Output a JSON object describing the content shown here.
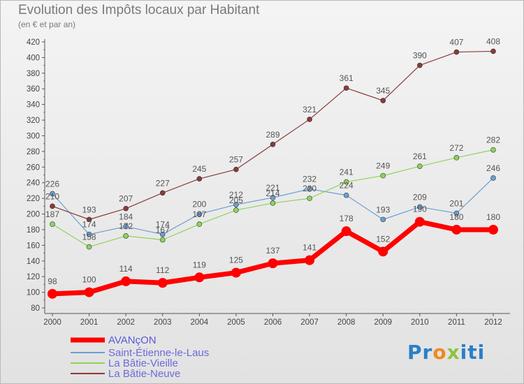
{
  "chart_data": {
    "type": "line",
    "title": "Evolution des Impôts locaux par Habitant",
    "subtitle": "(en € et par an)",
    "x": [
      "2000",
      "2001",
      "2002",
      "2003",
      "2004",
      "2005",
      "2006",
      "2007",
      "2008",
      "2009",
      "2010",
      "2011",
      "2012"
    ],
    "ylim": [
      80,
      420
    ],
    "yticks": [
      80,
      100,
      120,
      140,
      160,
      180,
      200,
      220,
      240,
      260,
      280,
      300,
      320,
      340,
      360,
      380,
      400,
      420
    ],
    "grid": false,
    "legend_position": "bottom-left",
    "series": [
      {
        "name": "AVANçON",
        "color": "#ff0000",
        "width": 7,
        "marker": 7,
        "values": [
          98,
          100,
          114,
          112,
          119,
          125,
          137,
          141,
          178,
          152,
          190,
          180,
          180
        ]
      },
      {
        "name": "Saint-Étienne-le-Laus",
        "color": "#6a9fd4",
        "width": 1.2,
        "marker": 3.5,
        "values": [
          226,
          174,
          184,
          174,
          200,
          212,
          221,
          232,
          224,
          193,
          209,
          201,
          246
        ]
      },
      {
        "name": "La Bâtie-Vieille",
        "color": "#8fd45a",
        "width": 1.2,
        "marker": 3.5,
        "values": [
          187,
          158,
          172,
          167,
          187,
          205,
          214,
          220,
          241,
          249,
          261,
          272,
          282
        ]
      },
      {
        "name": "La Bâtie-Neuve",
        "color": "#8b3a3a",
        "width": 1.2,
        "marker": 3.5,
        "values": [
          210,
          193,
          207,
          227,
          245,
          257,
          289,
          321,
          361,
          345,
          390,
          407,
          408
        ]
      }
    ]
  },
  "brand": {
    "p1": "Pr",
    "p2": "o",
    "p3": "x",
    "p4": "iti"
  }
}
